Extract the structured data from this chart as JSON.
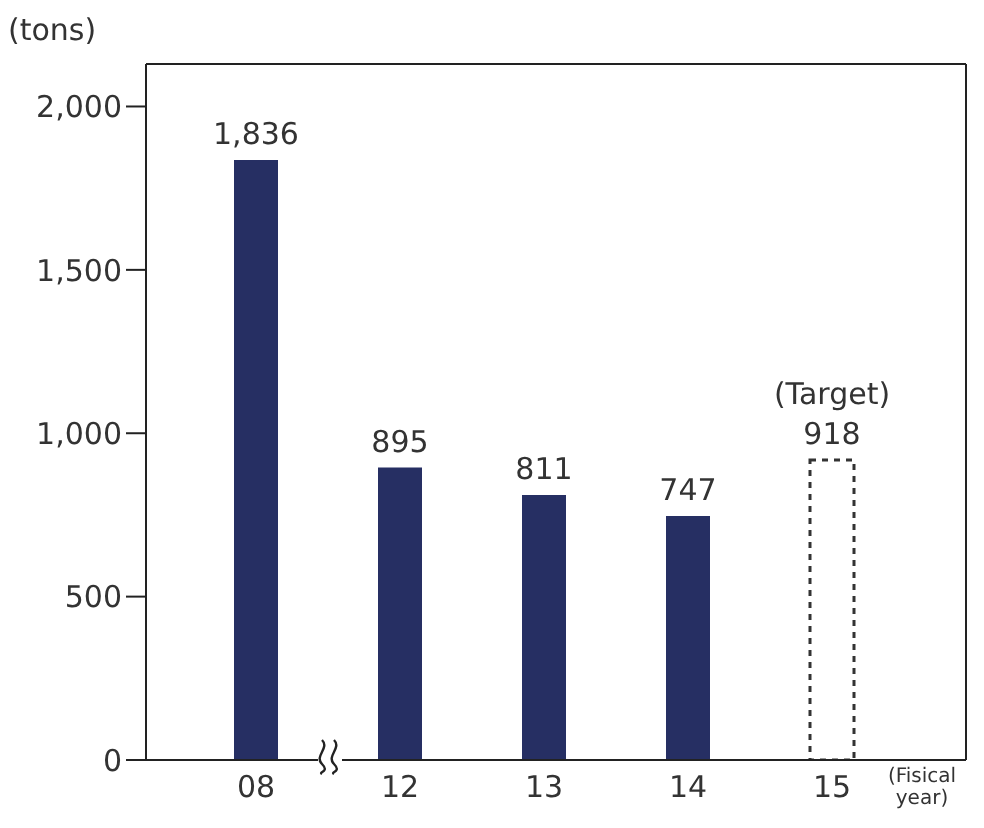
{
  "chart_data": {
    "type": "bar",
    "ylabel": "(tons)",
    "xlabel": "(Fisical year)",
    "categories": [
      "08",
      "12",
      "13",
      "14",
      "15"
    ],
    "stacked": true,
    "series": [
      {
        "type": "bar",
        "color": "#262f63",
        "values": [
          1836,
          895,
          811,
          747,
          null
        ],
        "value_labels": [
          "1,836",
          "895",
          "811",
          "747",
          null
        ]
      },
      {
        "type": "bar",
        "color": "#333333",
        "line_style": "dashed",
        "values": [
          null,
          null,
          null,
          null,
          918
        ],
        "value_labels": [
          null,
          null,
          null,
          null,
          "918"
        ]
      }
    ],
    "ylim": [
      0,
      2130
    ],
    "yticks": [
      0,
      500,
      {
        "value": 1000,
        "label": "1,000"
      },
      {
        "value": 1500,
        "label": "1,500"
      },
      {
        "value": 2000,
        "label": "2,000"
      }
    ],
    "annotations": [
      {
        "text": "(Target)",
        "x": "15",
        "y": 918
      }
    ],
    "grid": false,
    "legend": false
  }
}
